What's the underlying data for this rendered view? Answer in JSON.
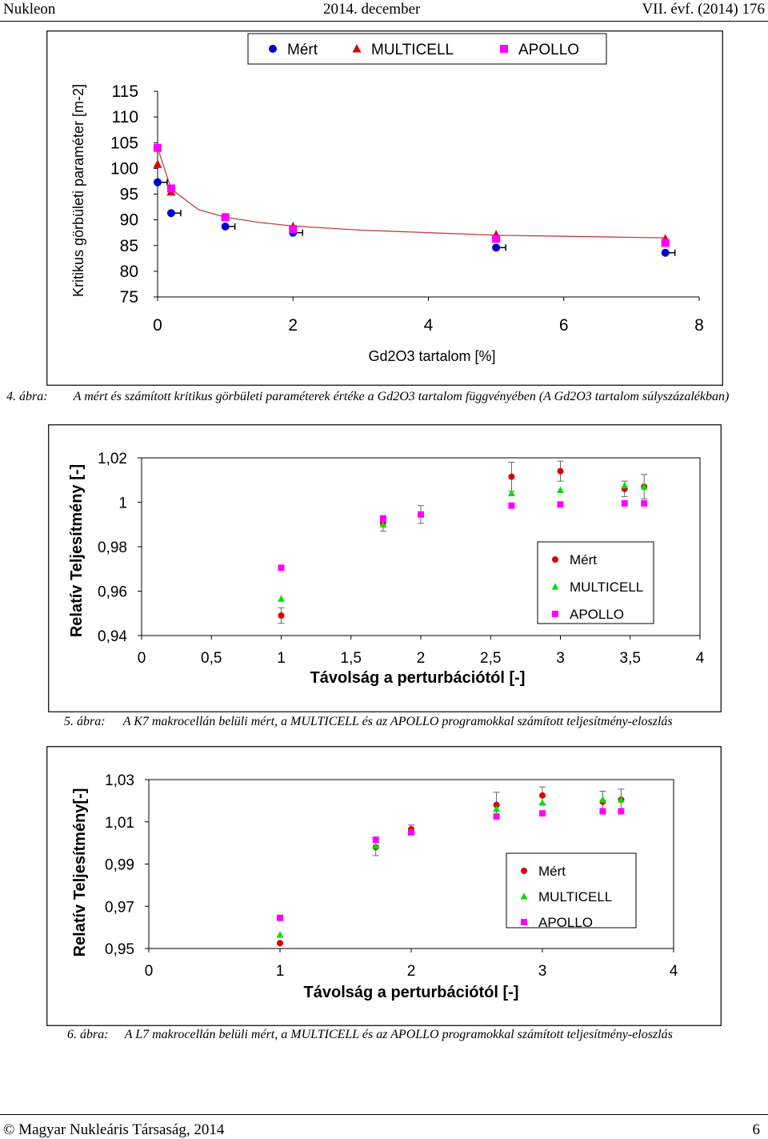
{
  "header": {
    "journal": "Nukleon",
    "issue": "2014. december",
    "volume": "VII. évf. (2014) 176"
  },
  "footer": {
    "copyright": "© Magyar Nukleáris Társaság, 2014",
    "page": "6"
  },
  "figure4_caption": {
    "num": "4. ábra:",
    "text": "A mért és számított kritikus görbületi paraméterek értéke a Gd2O3 tartalom függvényében (A Gd2O3 tartalom súlyszázalékban)"
  },
  "figure5_caption": {
    "num": "5. ábra:",
    "text": "A K7 makrocellán belüli mért, a MULTICELL és az APOLLO programokkal számított teljesítmény-eloszlás"
  },
  "figure6_caption": {
    "num": "6. ábra:",
    "text": "A L7 makrocellán belüli mért, a MULTICELL és az APOLLO programokkal számított teljesítmény-eloszlás"
  },
  "colors": {
    "measured_fig4": "#0000cc",
    "measured": "#e00000",
    "multicell_fig4": "#e00000",
    "multicell": "#00e000",
    "apollo": "#ff00ff",
    "fit_line": "#c04040"
  },
  "chart_data": [
    {
      "type": "scatter",
      "title": "",
      "xlabel": "Gd2O3 tartalom [%]",
      "ylabel": "Kritikus görbületi paraméter [m-2]",
      "xlim": [
        0,
        8
      ],
      "ylim": [
        75,
        115
      ],
      "xticks": [
        "0",
        "2",
        "4",
        "6",
        "8"
      ],
      "yticks": [
        "75",
        "80",
        "85",
        "90",
        "95",
        "100",
        "105",
        "110",
        "115"
      ],
      "legend": [
        "Mért",
        "MULTICELL",
        "APOLLO"
      ],
      "series": [
        {
          "name": "Mért",
          "x": [
            0,
            0.2,
            1,
            2,
            5,
            7.5
          ],
          "y": [
            97.3,
            91.3,
            88.7,
            87.5,
            84.6,
            83.6
          ],
          "err": [
            0.5,
            0.5,
            0.5,
            0.5,
            0.5,
            0.5
          ]
        },
        {
          "name": "MULTICELL",
          "x": [
            0,
            0.2,
            1,
            2,
            5,
            7.5
          ],
          "y": [
            100.8,
            95.4,
            90.5,
            88.7,
            87.1,
            86.3
          ]
        },
        {
          "name": "APOLLO",
          "x": [
            0,
            0.2,
            1,
            2,
            5,
            7.5
          ],
          "y": [
            104,
            96.1,
            90.5,
            88.2,
            86.3,
            85.5
          ]
        }
      ],
      "fit_line": {
        "x": [
          0,
          0.2,
          0.6,
          1,
          1.5,
          2,
          3,
          4,
          5,
          6,
          7,
          7.5
        ],
        "y": [
          104,
          96,
          92,
          90.5,
          89.5,
          88.8,
          88,
          87.5,
          87,
          86.8,
          86.6,
          86.5
        ]
      }
    },
    {
      "type": "scatter",
      "title": "",
      "xlabel": "Távolság a perturbációtól [-]",
      "ylabel": "Relatív Teljesítmény [-]",
      "xlim": [
        0,
        4
      ],
      "ylim": [
        0.94,
        1.02
      ],
      "xticks": [
        "0",
        "0,5",
        "1",
        "1,5",
        "2",
        "2,5",
        "3",
        "3,5",
        "4"
      ],
      "yticks": [
        "0,94",
        "0,96",
        "0,98",
        "1",
        "1,02"
      ],
      "legend": [
        "Mért",
        "MULTICELL",
        "APOLLO"
      ],
      "series": [
        {
          "name": "Mért",
          "x": [
            1,
            1.73,
            2,
            2.65,
            3,
            3.46,
            3.6
          ],
          "y": [
            0.949,
            0.9905,
            0.9945,
            1.0115,
            1.014,
            1.006,
            1.007
          ],
          "err": [
            0.0035,
            0.0035,
            0.004,
            0.0065,
            0.0045,
            0.0035,
            0.0055
          ]
        },
        {
          "name": "MULTICELL",
          "x": [
            1,
            1.73,
            2,
            2.65,
            3,
            3.46,
            3.6
          ],
          "y": [
            0.9565,
            0.99,
            0.9945,
            1.004,
            1.0055,
            1.0075,
            1.007
          ]
        },
        {
          "name": "APOLLO",
          "x": [
            1,
            1.73,
            2,
            2.65,
            3,
            3.46,
            3.6
          ],
          "y": [
            0.9705,
            0.9925,
            0.9945,
            0.9985,
            0.999,
            0.9995,
            0.9995
          ]
        }
      ]
    },
    {
      "type": "scatter",
      "title": "",
      "xlabel": "Távolság a perturbációtól [-]",
      "ylabel": "Relatív Teljesítmény[-]",
      "xlim": [
        0,
        4
      ],
      "ylim": [
        0.95,
        1.03
      ],
      "xticks": [
        "0",
        "1",
        "2",
        "3",
        "4"
      ],
      "yticks": [
        "0,95",
        "0,97",
        "0,99",
        "1,01",
        "1,03"
      ],
      "legend": [
        "Mért",
        "MULTICELL",
        "APOLLO"
      ],
      "series": [
        {
          "name": "Mért",
          "x": [
            1,
            1.73,
            2,
            2.65,
            3,
            3.46,
            3.6
          ],
          "y": [
            0.9525,
            0.998,
            1.0065,
            1.018,
            1.0225,
            1.0195,
            1.0205
          ],
          "err": [
            0.0005,
            0.004,
            0.002,
            0.006,
            0.004,
            0.005,
            0.005
          ]
        },
        {
          "name": "MULTICELL",
          "x": [
            1,
            1.73,
            2,
            2.65,
            3,
            3.46,
            3.6
          ],
          "y": [
            0.9565,
            0.9985,
            1.005,
            1.016,
            1.019,
            1.0205,
            1.0205
          ]
        },
        {
          "name": "APOLLO",
          "x": [
            1,
            1.73,
            2,
            2.65,
            3,
            3.46,
            3.6
          ],
          "y": [
            0.9645,
            1.0015,
            1.005,
            1.0125,
            1.014,
            1.015,
            1.015
          ]
        }
      ]
    }
  ]
}
